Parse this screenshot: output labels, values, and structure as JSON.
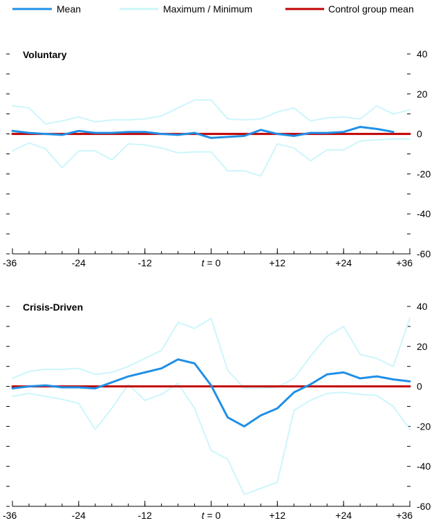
{
  "colors": {
    "mean": "#1f8fe6",
    "maxmin": "#ccf6fb",
    "control": "#c00000",
    "axis": "#000000"
  },
  "legend": [
    {
      "label": "Mean",
      "color_key": "mean"
    },
    {
      "label": "Maximum / Minimum",
      "color_key": "maxmin"
    },
    {
      "label": "Control group mean",
      "color_key": "control"
    }
  ],
  "chart_data": [
    {
      "type": "line",
      "title": "Voluntary",
      "x": [
        -36,
        -33,
        -30,
        -27,
        -24,
        -21,
        -18,
        -15,
        -12,
        -9,
        -6,
        -3,
        0,
        3,
        6,
        9,
        12,
        15,
        18,
        21,
        24,
        27,
        30,
        33,
        36
      ],
      "x_tick_values": [
        -36,
        -24,
        -12,
        0,
        12,
        24,
        36
      ],
      "x_tick_labels": [
        "-36",
        "-24",
        "-12",
        "t = 0",
        "+12",
        "+24",
        "+36"
      ],
      "ylim": [
        -60,
        40
      ],
      "y_tick_values": [
        40,
        20,
        0,
        -20,
        -40,
        -60
      ],
      "y_tick_labels": [
        "40",
        "20",
        "0",
        "-20",
        "-40",
        "-60"
      ],
      "y_minor_step": 10,
      "series": [
        {
          "name": "Mean",
          "color_key": "mean",
          "values": [
            1.5,
            0.5,
            0,
            -0.5,
            1.5,
            0.5,
            0.5,
            1,
            1,
            0,
            -0.5,
            0.5,
            -2,
            -1.5,
            -1,
            2,
            0,
            -1,
            0.5,
            0.5,
            1,
            3.5,
            2.5,
            1,
            null
          ],
          "width": 3
        },
        {
          "name": "Maximum",
          "color_key": "maxmin",
          "values": [
            14,
            13,
            5,
            6.5,
            8.5,
            6,
            7,
            7,
            7.5,
            9,
            13,
            17,
            17,
            7.5,
            7,
            7.5,
            11,
            13,
            6.5,
            8,
            8.5,
            7.5,
            14,
            10,
            12
          ],
          "width": 2
        },
        {
          "name": "Minimum",
          "color_key": "maxmin",
          "values": [
            -8.5,
            -4.5,
            -7.5,
            -17,
            -8.5,
            -8.5,
            -13,
            -5,
            -5.5,
            -7,
            -9.5,
            -9,
            -9,
            -18.5,
            -18.5,
            -21,
            -5,
            -7,
            -13.5,
            -8,
            -8,
            -3.5,
            -3,
            -2.5,
            -2.5
          ],
          "width": 2
        },
        {
          "name": "Control group mean",
          "color_key": "control",
          "values": [
            0,
            0,
            0,
            0,
            0,
            0,
            0,
            0,
            0,
            0,
            0,
            0,
            0,
            0,
            0,
            0,
            0,
            0,
            0,
            0,
            0,
            0,
            0,
            0,
            0
          ],
          "width": 3
        }
      ]
    },
    {
      "type": "line",
      "title": "Crisis-Driven",
      "x": [
        -36,
        -33,
        -30,
        -27,
        -24,
        -21,
        -18,
        -15,
        -12,
        -9,
        -6,
        -3,
        0,
        3,
        6,
        9,
        12,
        15,
        18,
        21,
        24,
        27,
        30,
        33,
        36
      ],
      "x_tick_values": [
        -36,
        -24,
        -12,
        0,
        12,
        24,
        36
      ],
      "x_tick_labels": [
        "-36",
        "-24",
        "-12",
        "t = 0",
        "+12",
        "+24",
        "+36"
      ],
      "ylim": [
        -60,
        40
      ],
      "y_tick_values": [
        40,
        20,
        0,
        -20,
        -40,
        -60
      ],
      "y_tick_labels": [
        "40",
        "20",
        "0",
        "-20",
        "-40",
        "-60"
      ],
      "y_minor_step": 10,
      "series": [
        {
          "name": "Mean",
          "color_key": "mean",
          "values": [
            -1,
            0,
            0.5,
            -0.5,
            -0.5,
            -1,
            2,
            5,
            7,
            9,
            13.5,
            11.5,
            0.5,
            -15.5,
            -20,
            -14.5,
            -11,
            -3,
            1,
            6,
            7,
            4,
            5,
            3.5,
            2.5
          ],
          "width": 3
        },
        {
          "name": "Maximum",
          "color_key": "maxmin",
          "values": [
            4,
            7.5,
            8.5,
            8.5,
            9,
            6,
            7,
            10,
            14,
            18,
            32,
            29,
            34,
            8,
            -1,
            -1,
            -0.5,
            4,
            15,
            25,
            30,
            16,
            14,
            10,
            34
          ],
          "width": 2
        },
        {
          "name": "Minimum",
          "color_key": "maxmin",
          "values": [
            -5,
            -3.5,
            -5,
            -6.5,
            -8.5,
            -21.5,
            -11,
            1,
            -7,
            -4,
            1.5,
            -11,
            -32,
            -36.5,
            -54,
            -51,
            -48,
            -12,
            -7,
            -3.5,
            -3,
            -4,
            -4.5,
            -10,
            -21.5
          ],
          "width": 2
        },
        {
          "name": "Control group mean",
          "color_key": "control",
          "values": [
            0,
            0,
            0,
            0,
            0,
            0,
            0,
            0,
            0,
            0,
            0,
            0,
            0,
            0,
            0,
            0,
            0,
            0,
            0,
            0,
            0,
            0,
            0,
            0,
            0
          ],
          "width": 3
        }
      ]
    }
  ]
}
